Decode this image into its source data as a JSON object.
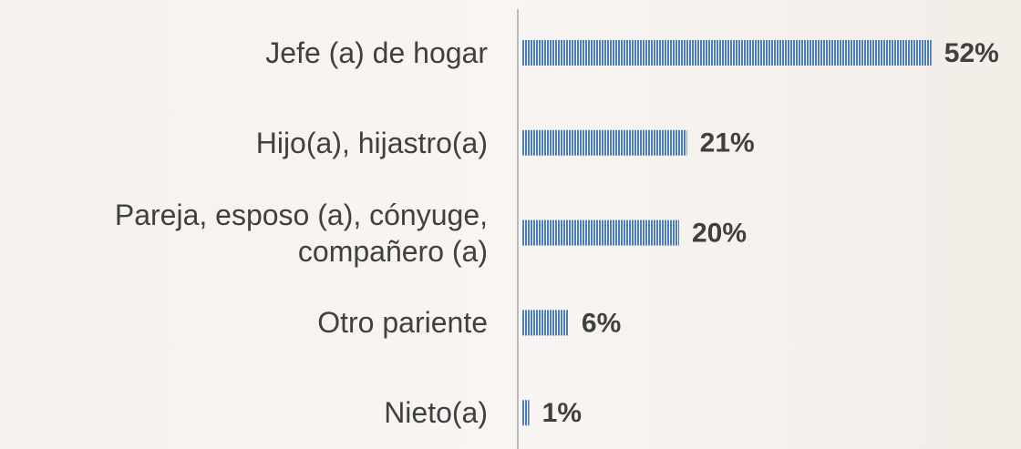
{
  "chart_data": {
    "type": "bar",
    "orientation": "horizontal",
    "categories": [
      "Jefe (a) de hogar",
      "Hijo(a), hijastro(a)",
      "Pareja, esposo (a), cónyuge, compañero (a)",
      "Otro pariente",
      "Nieto(a)"
    ],
    "values": [
      52,
      21,
      20,
      6,
      1
    ],
    "value_labels": [
      "52%",
      "21%",
      "20%",
      "6%",
      "1%"
    ],
    "color": "#4a7cc4"
  }
}
